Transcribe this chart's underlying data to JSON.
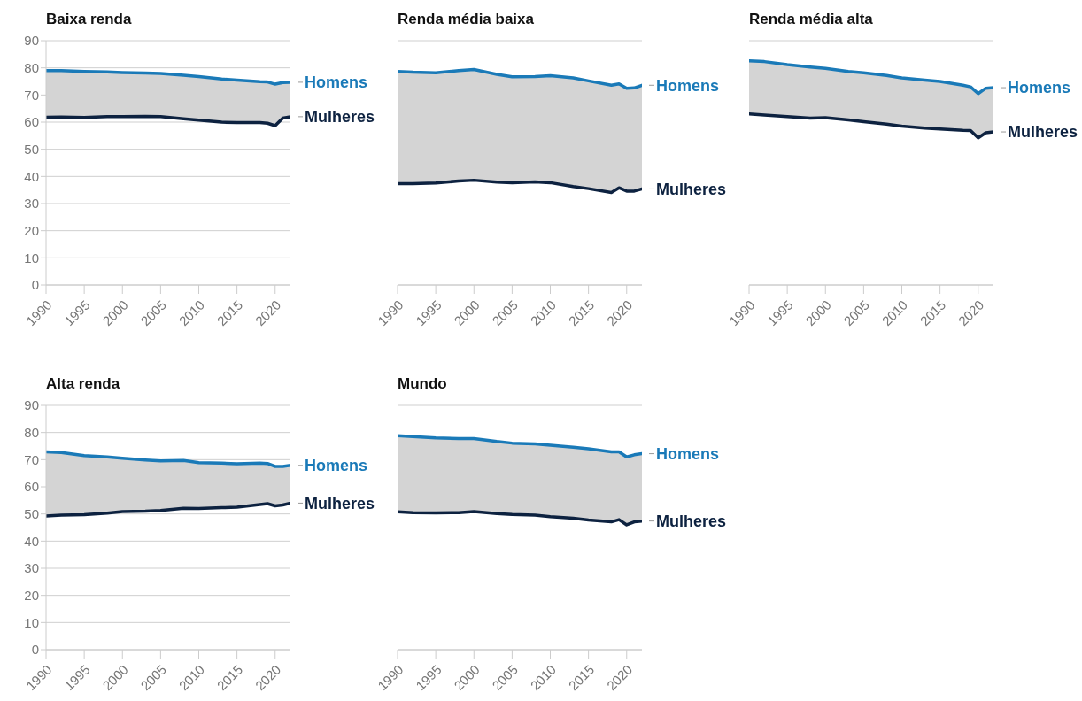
{
  "chart_data": [
    {
      "type": "line",
      "title": "Baixa renda",
      "x": [
        1990,
        1992,
        1995,
        1998,
        2000,
        2003,
        2005,
        2008,
        2010,
        2013,
        2015,
        2018,
        2019,
        2020,
        2021,
        2022
      ],
      "xlim": [
        1990,
        2022
      ],
      "xticks": [
        1990,
        1995,
        2000,
        2005,
        2010,
        2015,
        2020
      ],
      "ylim": [
        0,
        90
      ],
      "yticks": [
        0,
        10,
        20,
        30,
        40,
        50,
        60,
        70,
        80,
        90
      ],
      "grid": "y",
      "series": [
        {
          "name": "Homens",
          "color": "#1a7ab8",
          "values": [
            79,
            79,
            78.7,
            78.5,
            78.3,
            78.1,
            77.9,
            77.3,
            76.8,
            75.9,
            75.5,
            74.9,
            74.8,
            74,
            74.6,
            74.7
          ],
          "lower": [
            61.8,
            61.9,
            61.7,
            62,
            62,
            62.1,
            62,
            61.2,
            60.7,
            60,
            59.8,
            59.8,
            59.6,
            58.7,
            61.5,
            62
          ],
          "upper": [
            79,
            79,
            78.7,
            78.5,
            78.3,
            78.1,
            77.9,
            77.3,
            76.8,
            75.9,
            75.5,
            74.9,
            74.8,
            74,
            74.6,
            74.7
          ]
        },
        {
          "name": "Mulheres",
          "color": "#0d2240",
          "values": [
            61.8,
            61.9,
            61.7,
            62,
            62,
            62.1,
            62,
            61.2,
            60.7,
            60,
            59.8,
            59.8,
            59.6,
            58.7,
            61.5,
            62
          ]
        }
      ]
    },
    {
      "type": "line",
      "title": "Renda média baixa",
      "x": [
        1990,
        1992,
        1995,
        1998,
        2000,
        2003,
        2005,
        2008,
        2010,
        2013,
        2015,
        2018,
        2019,
        2020,
        2021,
        2022
      ],
      "xlim": [
        1990,
        2022
      ],
      "xticks": [
        1990,
        1995,
        2000,
        2005,
        2010,
        2015,
        2020
      ],
      "ylim": [
        0,
        90
      ],
      "yticks": [
        0,
        10,
        20,
        30,
        40,
        50,
        60,
        70,
        80,
        90
      ],
      "grid": "y",
      "tick_labels": "x",
      "series": [
        {
          "name": "Homens",
          "color": "#1a7ab8",
          "values": [
            78.7,
            78.4,
            78.2,
            79,
            79.4,
            77.6,
            76.7,
            76.8,
            77.1,
            76.3,
            75.2,
            73.6,
            74.1,
            72.5,
            72.6,
            73.6
          ],
          "lower": [
            37.3,
            37.3,
            37.6,
            38.3,
            38.6,
            37.9,
            37.7,
            38,
            37.7,
            36.3,
            35.5,
            34.1,
            35.8,
            34.6,
            34.6,
            35.4
          ],
          "upper": [
            78.7,
            78.4,
            78.2,
            79,
            79.4,
            77.6,
            76.7,
            76.8,
            77.1,
            76.3,
            75.2,
            73.6,
            74.1,
            72.5,
            72.6,
            73.6
          ]
        },
        {
          "name": "Mulheres",
          "color": "#0d2240",
          "values": [
            37.3,
            37.3,
            37.6,
            38.3,
            38.6,
            37.9,
            37.7,
            38,
            37.7,
            36.3,
            35.5,
            34.1,
            35.8,
            34.6,
            34.6,
            35.4
          ]
        }
      ]
    },
    {
      "type": "line",
      "title": "Renda média alta",
      "x": [
        1990,
        1992,
        1995,
        1998,
        2000,
        2003,
        2005,
        2008,
        2010,
        2013,
        2015,
        2018,
        2019,
        2020,
        2021,
        2022
      ],
      "xlim": [
        1990,
        2022
      ],
      "xticks": [
        1990,
        1995,
        2000,
        2005,
        2010,
        2015,
        2020
      ],
      "ylim": [
        0,
        90
      ],
      "yticks": [
        0,
        10,
        20,
        30,
        40,
        50,
        60,
        70,
        80,
        90
      ],
      "grid": "y",
      "tick_labels": "x",
      "series": [
        {
          "name": "Homens",
          "color": "#1a7ab8",
          "values": [
            82.6,
            82.3,
            81.2,
            80.3,
            79.8,
            78.7,
            78.2,
            77.2,
            76.3,
            75.5,
            75,
            73.6,
            73,
            70.5,
            72.5,
            72.7
          ],
          "lower": [
            63,
            62.6,
            62,
            61.5,
            61.6,
            60.8,
            60.2,
            59.3,
            58.5,
            57.8,
            57.5,
            57,
            56.9,
            54.2,
            56.1,
            56.4
          ],
          "upper": [
            82.6,
            82.3,
            81.2,
            80.3,
            79.8,
            78.7,
            78.2,
            77.2,
            76.3,
            75.5,
            75,
            73.6,
            73,
            70.5,
            72.5,
            72.7
          ]
        },
        {
          "name": "Mulheres",
          "color": "#0d2240",
          "values": [
            63,
            62.6,
            62,
            61.5,
            61.6,
            60.8,
            60.2,
            59.3,
            58.5,
            57.8,
            57.5,
            57,
            56.9,
            54.2,
            56.1,
            56.4
          ]
        }
      ]
    },
    {
      "type": "line",
      "title": "Alta renda",
      "x": [
        1990,
        1992,
        1995,
        1998,
        2000,
        2003,
        2005,
        2008,
        2010,
        2013,
        2015,
        2018,
        2019,
        2020,
        2021,
        2022
      ],
      "xlim": [
        1990,
        2022
      ],
      "xticks": [
        1990,
        1995,
        2000,
        2005,
        2010,
        2015,
        2020
      ],
      "ylim": [
        0,
        90
      ],
      "yticks": [
        0,
        10,
        20,
        30,
        40,
        50,
        60,
        70,
        80,
        90
      ],
      "grid": "y",
      "series": [
        {
          "name": "Homens",
          "color": "#1a7ab8",
          "values": [
            72.9,
            72.6,
            71.5,
            71,
            70.5,
            69.9,
            69.5,
            69.7,
            68.9,
            68.7,
            68.5,
            68.7,
            68.6,
            67.5,
            67.5,
            67.9
          ],
          "lower": [
            49.2,
            49.6,
            49.7,
            50.3,
            50.9,
            51,
            51.3,
            52.1,
            52,
            52.3,
            52.5,
            53.5,
            53.8,
            53,
            53.3,
            54
          ],
          "upper": [
            72.9,
            72.6,
            71.5,
            71,
            70.5,
            69.9,
            69.5,
            69.7,
            68.9,
            68.7,
            68.5,
            68.7,
            68.6,
            67.5,
            67.5,
            67.9
          ]
        },
        {
          "name": "Mulheres",
          "color": "#0d2240",
          "values": [
            49.2,
            49.6,
            49.7,
            50.3,
            50.9,
            51,
            51.3,
            52.1,
            52,
            52.3,
            52.5,
            53.5,
            53.8,
            53,
            53.3,
            54
          ]
        }
      ]
    },
    {
      "type": "line",
      "title": "Mundo",
      "x": [
        1990,
        1992,
        1995,
        1998,
        2000,
        2003,
        2005,
        2008,
        2010,
        2013,
        2015,
        2018,
        2019,
        2020,
        2021,
        2022
      ],
      "xlim": [
        1990,
        2022
      ],
      "xticks": [
        1990,
        1995,
        2000,
        2005,
        2010,
        2015,
        2020
      ],
      "ylim": [
        0,
        90
      ],
      "yticks": [
        0,
        10,
        20,
        30,
        40,
        50,
        60,
        70,
        80,
        90
      ],
      "grid": "y",
      "tick_labels": "x",
      "series": [
        {
          "name": "Homens",
          "color": "#1a7ab8",
          "values": [
            78.8,
            78.5,
            78,
            77.8,
            77.8,
            76.7,
            76.1,
            75.8,
            75.3,
            74.6,
            74,
            72.9,
            72.9,
            71,
            71.8,
            72.2
          ],
          "lower": [
            50.8,
            50.5,
            50.4,
            50.5,
            50.9,
            50.1,
            49.8,
            49.6,
            49,
            48.4,
            47.8,
            47.1,
            47.9,
            46,
            47.1,
            47.4
          ],
          "upper": [
            78.8,
            78.5,
            78,
            77.8,
            77.8,
            76.7,
            76.1,
            75.8,
            75.3,
            74.6,
            74,
            72.9,
            72.9,
            71,
            71.8,
            72.2
          ]
        },
        {
          "name": "Mulheres",
          "color": "#0d2240",
          "values": [
            50.8,
            50.5,
            50.4,
            50.5,
            50.9,
            50.1,
            49.8,
            49.6,
            49,
            48.4,
            47.8,
            47.1,
            47.9,
            46,
            47.1,
            47.4
          ]
        }
      ]
    }
  ]
}
